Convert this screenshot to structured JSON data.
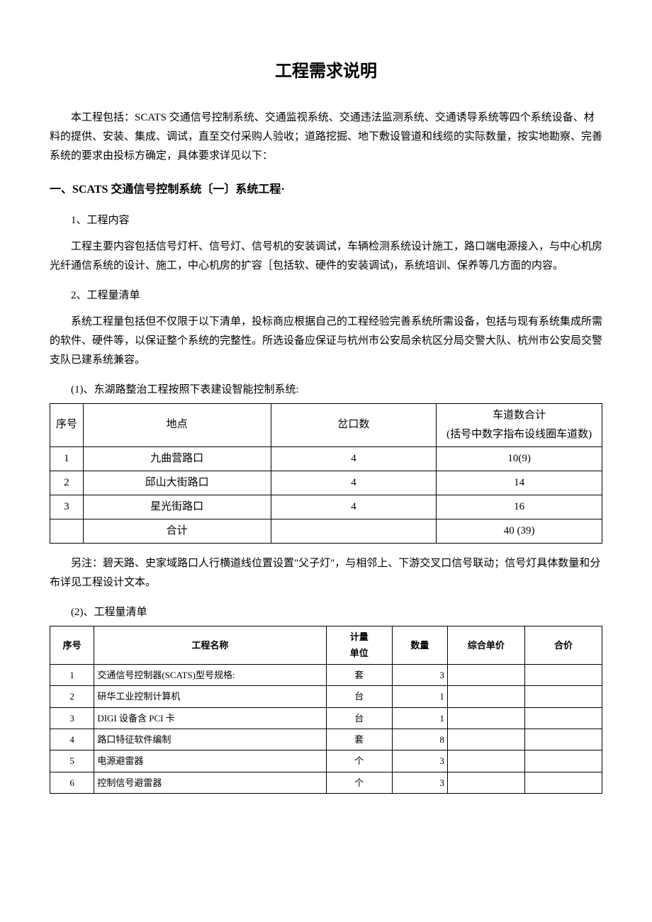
{
  "title": "工程需求说明",
  "intro": "本工程包括：SCATS 交通信号控制系统、交通监视系统、交通违法监测系统、交通诱导系统等四个系统设备、材料的提供、安装、集成、调试，直至交付采购人验收；道路挖掘、地下敷设管道和线缆的实际数量，按实地勘察、完善系统的要求由投标方确定，具体要求详见以下：",
  "section1": {
    "heading": "一、SCATS 交通信号控制系统〔一〕系统工程·",
    "sub1": {
      "heading": "1、工程内容",
      "text": "工程主要内容包括信号灯杆、信号灯、信号机的安装调试，车辆检测系统设计施工，路口端电源接入，与中心机房光纤通信系统的设计、施工，中心机房的扩容［包括软、硬件的安装调试)，系统培训、保养等几方面的内容。"
    },
    "sub2": {
      "heading": "2、工程量清单",
      "text": "系统工程量包括但不仅限于以下清单，投标商应根据自己的工程经验完善系统所需设备，包括与现有系统集成所需的软件、硬件等，以保证整个系统的完整性。所选设备应保证与杭州市公安局余杭区分局交警大队、杭州市公安局交警支队已建系统兼容。"
    },
    "table1": {
      "caption": "(1)、东湖路整治工程按照下表建设智能控制系统:",
      "headers": {
        "seq": "序号",
        "loc": "地点",
        "count": "岔口数",
        "lanes": "车道数合计\n(括号中数字指布设线圈车道数)"
      },
      "rows": [
        {
          "seq": "1",
          "loc": "九曲营路口",
          "count": "4",
          "lanes": "10(9)"
        },
        {
          "seq": "2",
          "loc": "邱山大街路口",
          "count": "4",
          "lanes": "14"
        },
        {
          "seq": "3",
          "loc": "星光街路口",
          "count": "4",
          "lanes": "16"
        },
        {
          "seq": "",
          "loc": "合计",
          "count": "",
          "lanes": "40 (39)"
        }
      ]
    },
    "note": "另注：碧天路、史家域路口人行横道线位置设置\"父子灯\"，与相邻上、下游交叉口信号联动；信号灯具体数量和分布详见工程设计文本。",
    "table2": {
      "caption": "(2)、工程量清单",
      "headers": {
        "seq": "序号",
        "name": "工程名称",
        "unit": "计量\n单位",
        "qty": "数量",
        "price": "综合单价",
        "total": "合价"
      },
      "rows": [
        {
          "seq": "1",
          "name": "交通信号控制器(SCATS)型号规格:",
          "unit": "套",
          "qty": "3",
          "price": "",
          "total": ""
        },
        {
          "seq": "2",
          "name": "研华工业控制计算机",
          "unit": "台",
          "qty": "1",
          "price": "",
          "total": ""
        },
        {
          "seq": "3",
          "name": "DIGI 设备含 PCI 卡",
          "unit": "台",
          "qty": "1",
          "price": "",
          "total": ""
        },
        {
          "seq": "4",
          "name": "路口特征软件编制",
          "unit": "套",
          "qty": "8",
          "price": "",
          "total": ""
        },
        {
          "seq": "5",
          "name": "电源避雷器",
          "unit": "个",
          "qty": "3",
          "price": "",
          "total": ""
        },
        {
          "seq": "6",
          "name": "控制信号避雷器",
          "unit": "个",
          "qty": "3",
          "price": "",
          "total": ""
        }
      ]
    }
  }
}
